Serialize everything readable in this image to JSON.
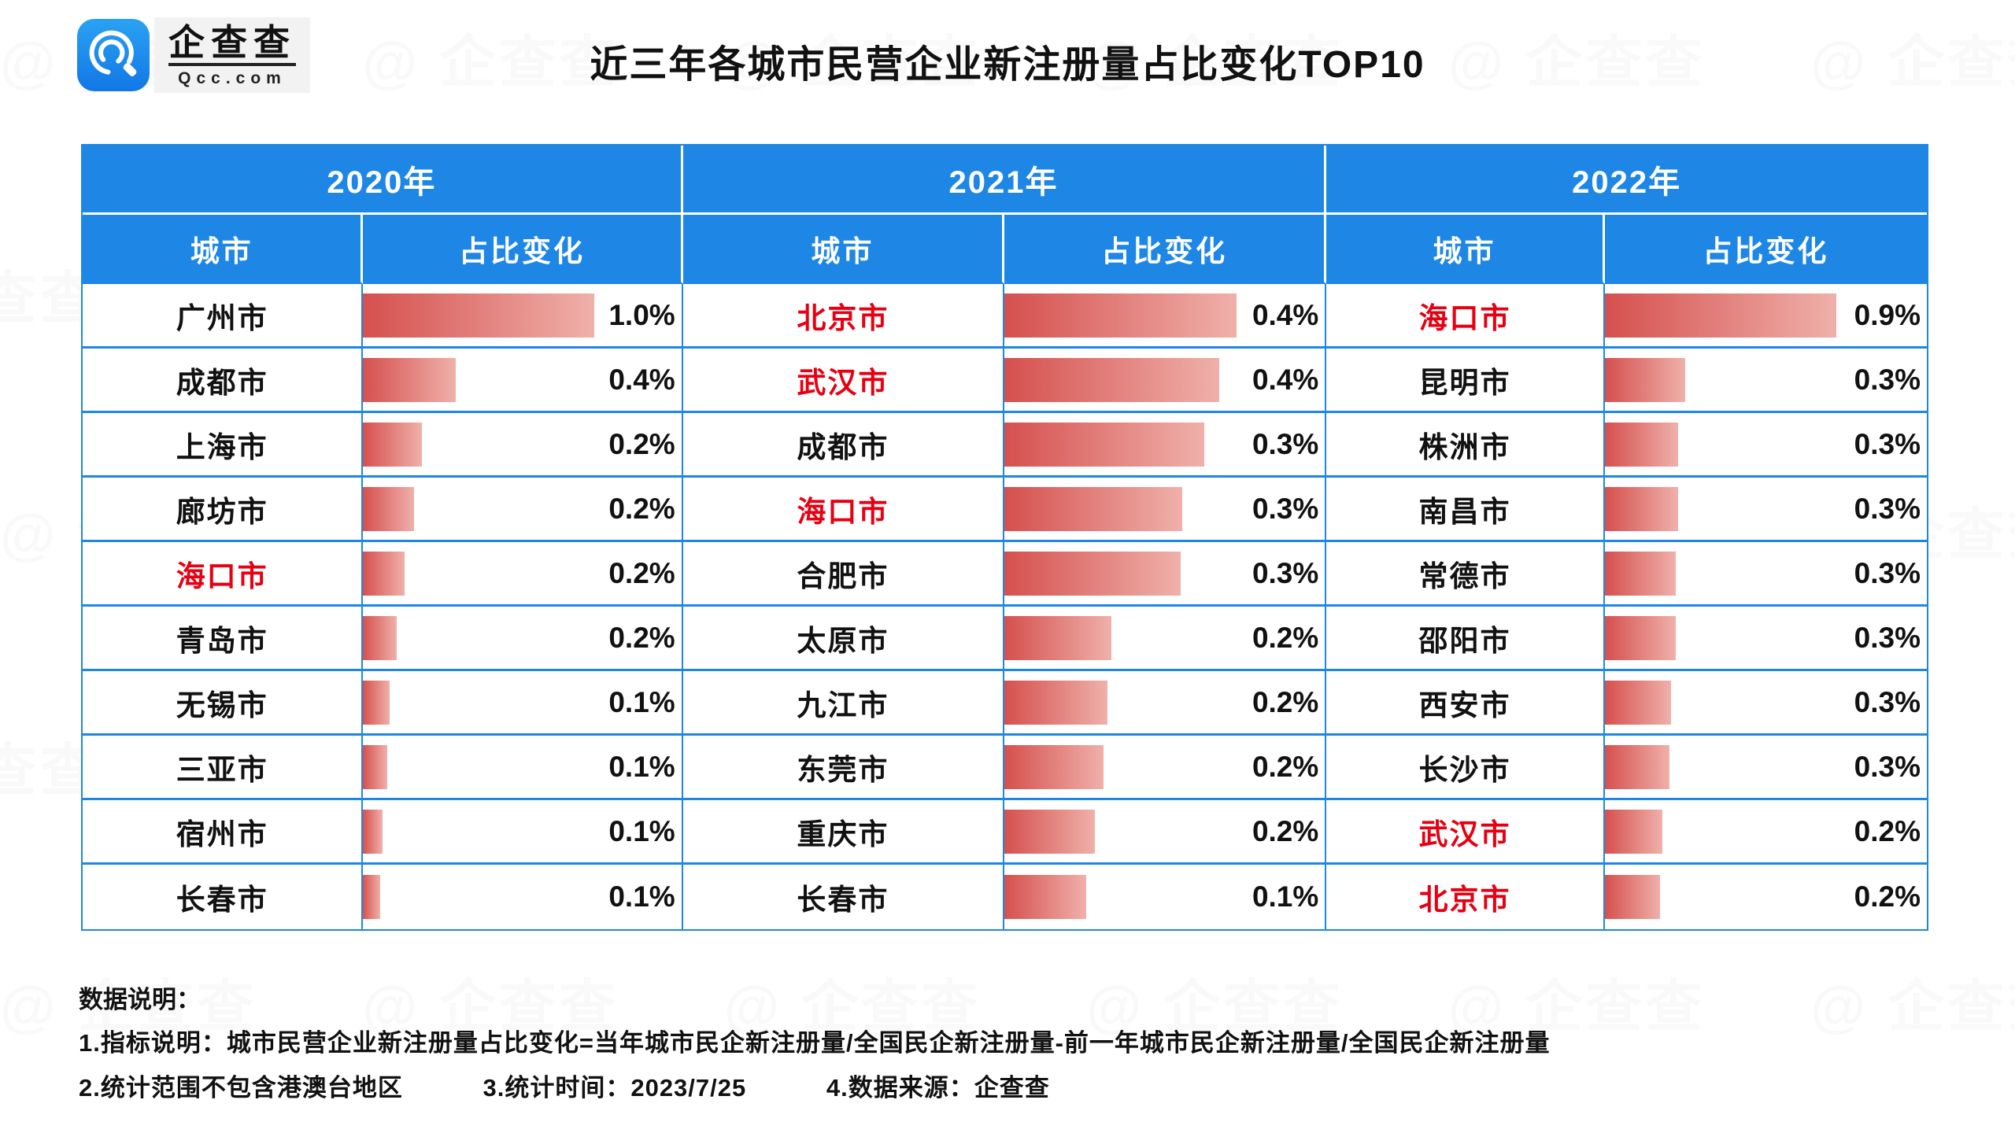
{
  "brand": {
    "logo_text": "企查查",
    "logo_sub": "Qcc.com",
    "icon_name": "qcc-spiral-logo"
  },
  "title": "近三年各城市民营企业新注册量占比变化TOP10",
  "colors": {
    "header_blue": "#1e87e5",
    "highlight_red": "#e60012",
    "bar_gradient_from": "#d5504e",
    "bar_gradient_to": "#f0b0aa"
  },
  "watermark": {
    "text": "企查查"
  },
  "table": {
    "col_headers": {
      "city": "城市",
      "change": "占比变化"
    },
    "years": [
      {
        "label": "2020年",
        "rows": [
          {
            "city": "广州市",
            "value": "1.0%",
            "bar": 72.7,
            "highlight": false
          },
          {
            "city": "成都市",
            "value": "0.4%",
            "bar": 29.0,
            "highlight": false
          },
          {
            "city": "上海市",
            "value": "0.2%",
            "bar": 18.4,
            "highlight": false
          },
          {
            "city": "廊坊市",
            "value": "0.2%",
            "bar": 16.0,
            "highlight": false
          },
          {
            "city": "海口市",
            "value": "0.2%",
            "bar": 13.0,
            "highlight": true
          },
          {
            "city": "青岛市",
            "value": "0.2%",
            "bar": 10.6,
            "highlight": false
          },
          {
            "city": "无锡市",
            "value": "0.1%",
            "bar": 8.4,
            "highlight": false
          },
          {
            "city": "三亚市",
            "value": "0.1%",
            "bar": 7.6,
            "highlight": false
          },
          {
            "city": "宿州市",
            "value": "0.1%",
            "bar": 6.1,
            "highlight": false
          },
          {
            "city": "长春市",
            "value": "0.1%",
            "bar": 5.4,
            "highlight": false
          }
        ]
      },
      {
        "label": "2021年",
        "rows": [
          {
            "city": "北京市",
            "value": "0.4%",
            "bar": 72.4,
            "highlight": true
          },
          {
            "city": "武汉市",
            "value": "0.4%",
            "bar": 67.0,
            "highlight": true
          },
          {
            "city": "成都市",
            "value": "0.3%",
            "bar": 62.4,
            "highlight": false
          },
          {
            "city": "海口市",
            "value": "0.3%",
            "bar": 55.6,
            "highlight": true
          },
          {
            "city": "合肥市",
            "value": "0.3%",
            "bar": 54.9,
            "highlight": false
          },
          {
            "city": "太原市",
            "value": "0.2%",
            "bar": 33.4,
            "highlight": false
          },
          {
            "city": "九江市",
            "value": "0.2%",
            "bar": 32.2,
            "highlight": false
          },
          {
            "city": "东莞市",
            "value": "0.2%",
            "bar": 31.0,
            "highlight": false
          },
          {
            "city": "重庆市",
            "value": "0.2%",
            "bar": 28.3,
            "highlight": false
          },
          {
            "city": "长春市",
            "value": "0.1%",
            "bar": 25.6,
            "highlight": false
          }
        ]
      },
      {
        "label": "2022年",
        "rows": [
          {
            "city": "海口市",
            "value": "0.9%",
            "bar": 72.0,
            "highlight": true
          },
          {
            "city": "昆明市",
            "value": "0.3%",
            "bar": 25.0,
            "highlight": false
          },
          {
            "city": "株洲市",
            "value": "0.3%",
            "bar": 22.7,
            "highlight": false
          },
          {
            "city": "南昌市",
            "value": "0.3%",
            "bar": 22.7,
            "highlight": false
          },
          {
            "city": "常德市",
            "value": "0.3%",
            "bar": 22.0,
            "highlight": false
          },
          {
            "city": "邵阳市",
            "value": "0.3%",
            "bar": 22.0,
            "highlight": false
          },
          {
            "city": "西安市",
            "value": "0.3%",
            "bar": 20.7,
            "highlight": false
          },
          {
            "city": "长沙市",
            "value": "0.3%",
            "bar": 20.0,
            "highlight": false
          },
          {
            "city": "武汉市",
            "value": "0.2%",
            "bar": 18.0,
            "highlight": true
          },
          {
            "city": "北京市",
            "value": "0.2%",
            "bar": 17.1,
            "highlight": true
          }
        ]
      }
    ]
  },
  "notes": {
    "heading": "数据说明：",
    "line1": "1.指标说明：城市民营企业新注册量占比变化=当年城市民企新注册量/全国民企新注册量-前一年城市民企新注册量/全国民企新注册量",
    "line2_items": [
      "2.统计范围不包含港澳台地区",
      "3.统计时间：2023/7/25",
      "4.数据来源：企查查"
    ]
  },
  "chart_data": {
    "type": "bar",
    "title": "近三年各城市民营企业新注册量占比变化TOP10",
    "unit": "%",
    "legend_position": "table-column-groups",
    "grid": false,
    "series": [
      {
        "name": "2020年",
        "categories": [
          "广州市",
          "成都市",
          "上海市",
          "廊坊市",
          "海口市",
          "青岛市",
          "无锡市",
          "三亚市",
          "宿州市",
          "长春市"
        ],
        "values": [
          1.0,
          0.4,
          0.2,
          0.2,
          0.2,
          0.2,
          0.1,
          0.1,
          0.1,
          0.1
        ],
        "highlighted": [
          "海口市"
        ]
      },
      {
        "name": "2021年",
        "categories": [
          "北京市",
          "武汉市",
          "成都市",
          "海口市",
          "合肥市",
          "太原市",
          "九江市",
          "东莞市",
          "重庆市",
          "长春市"
        ],
        "values": [
          0.4,
          0.4,
          0.3,
          0.3,
          0.3,
          0.2,
          0.2,
          0.2,
          0.2,
          0.1
        ],
        "highlighted": [
          "北京市",
          "武汉市",
          "海口市"
        ]
      },
      {
        "name": "2022年",
        "categories": [
          "海口市",
          "昆明市",
          "株洲市",
          "南昌市",
          "常德市",
          "邵阳市",
          "西安市",
          "长沙市",
          "武汉市",
          "北京市"
        ],
        "values": [
          0.9,
          0.3,
          0.3,
          0.3,
          0.3,
          0.3,
          0.3,
          0.3,
          0.2,
          0.2
        ],
        "highlighted": [
          "海口市",
          "武汉市",
          "北京市"
        ]
      }
    ]
  }
}
